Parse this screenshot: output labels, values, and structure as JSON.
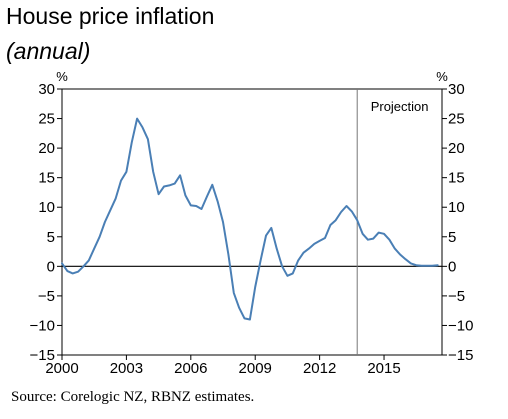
{
  "header": {
    "title": "House price inflation",
    "subtitle": "(annual)"
  },
  "footer": {
    "source": "Source: Corelogic NZ, RBNZ estimates."
  },
  "chart_data": {
    "type": "line",
    "title": "House price inflation",
    "subtitle": "(annual)",
    "ylabel_left": "%",
    "ylabel_right": "%",
    "xlim": [
      2000,
      2017.7
    ],
    "ylim": [
      -15,
      30
    ],
    "x_ticks": [
      2000,
      2003,
      2006,
      2009,
      2012,
      2015
    ],
    "y_ticks": [
      -15,
      -10,
      -5,
      0,
      5,
      10,
      15,
      20,
      25,
      30
    ],
    "y_tick_labels": [
      "−15",
      "−10",
      "−5",
      "0",
      "5",
      "10",
      "15",
      "20",
      "25",
      "30"
    ],
    "grid": false,
    "zero_line": true,
    "line_color": "#4a7fb5",
    "annotation": {
      "label": "Projection",
      "x": 2013.75
    },
    "series": [
      {
        "x": [
          2000.0,
          2000.25,
          2000.5,
          2000.75,
          2001.0,
          2001.25,
          2001.5,
          2001.75,
          2002.0,
          2002.25,
          2002.5,
          2002.75,
          2003.0,
          2003.25,
          2003.5,
          2003.75,
          2004.0,
          2004.25,
          2004.5,
          2004.75,
          2005.0,
          2005.25,
          2005.5,
          2005.75,
          2006.0,
          2006.25,
          2006.5,
          2006.75,
          2007.0,
          2007.25,
          2007.5,
          2007.75,
          2008.0,
          2008.25,
          2008.5,
          2008.75,
          2009.0,
          2009.25,
          2009.5,
          2009.75,
          2010.0,
          2010.25,
          2010.5,
          2010.75,
          2011.0,
          2011.25,
          2011.5,
          2011.75,
          2012.0,
          2012.25,
          2012.5,
          2012.75,
          2013.0,
          2013.25,
          2013.5,
          2013.75,
          2014.0,
          2014.25,
          2014.5,
          2014.75,
          2015.0,
          2015.25,
          2015.5,
          2015.75,
          2016.0,
          2016.25,
          2016.5,
          2016.75,
          2017.0,
          2017.25,
          2017.5
        ],
        "values": [
          0.5,
          -0.8,
          -1.2,
          -0.9,
          0.0,
          1.0,
          3.0,
          5.0,
          7.5,
          9.5,
          11.5,
          14.5,
          16.0,
          21.0,
          25.0,
          23.5,
          21.5,
          16.0,
          12.2,
          13.5,
          13.7,
          14.0,
          15.4,
          12.0,
          10.3,
          10.2,
          9.7,
          11.8,
          13.8,
          11.0,
          7.5,
          2.0,
          -4.5,
          -7.0,
          -8.8,
          -9.0,
          -3.5,
          1.0,
          5.2,
          6.5,
          3.0,
          0.0,
          -1.6,
          -1.2,
          1.0,
          2.3,
          3.0,
          3.8,
          4.3,
          4.8,
          7.0,
          7.8,
          9.2,
          10.2,
          9.3,
          7.8,
          5.5,
          4.5,
          4.7,
          5.7,
          5.5,
          4.5,
          3.0,
          2.0,
          1.2,
          0.5,
          0.2,
          0.1,
          0.1,
          0.1,
          0.2
        ]
      }
    ]
  }
}
